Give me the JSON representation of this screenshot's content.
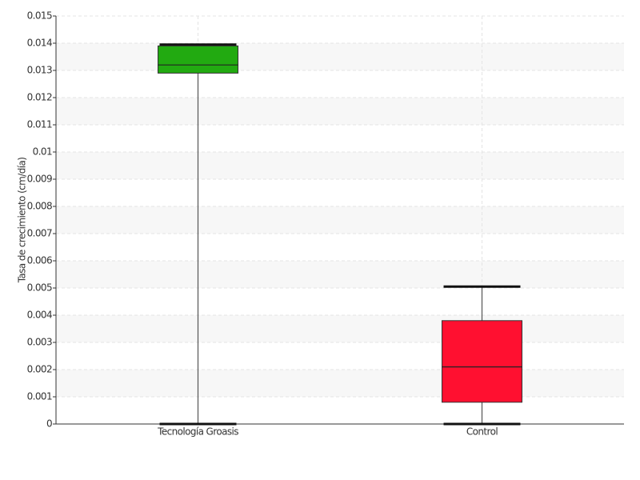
{
  "chart_data": {
    "type": "box",
    "y_label": "Tasa de crecimiento (cm/día)",
    "categories": [
      "Tecnología Groasis",
      "Control"
    ],
    "boxes": [
      {
        "min": 0,
        "q1": 0.0129,
        "median": 0.0132,
        "q3": 0.0139,
        "max": 0.01395
      },
      {
        "min": 0,
        "q1": 0.0008,
        "median": 0.0021,
        "q3": 0.0038,
        "max": 0.00505
      }
    ],
    "colors": [
      "#22aa11",
      "#ff1030"
    ],
    "ylim": [
      0,
      0.015
    ],
    "yticks": [
      0,
      0.001,
      0.002,
      0.003,
      0.004,
      0.005,
      0.006,
      0.007,
      0.008,
      0.009,
      0.01,
      0.011,
      0.012,
      0.013,
      0.014,
      0.015
    ],
    "grid": true
  }
}
